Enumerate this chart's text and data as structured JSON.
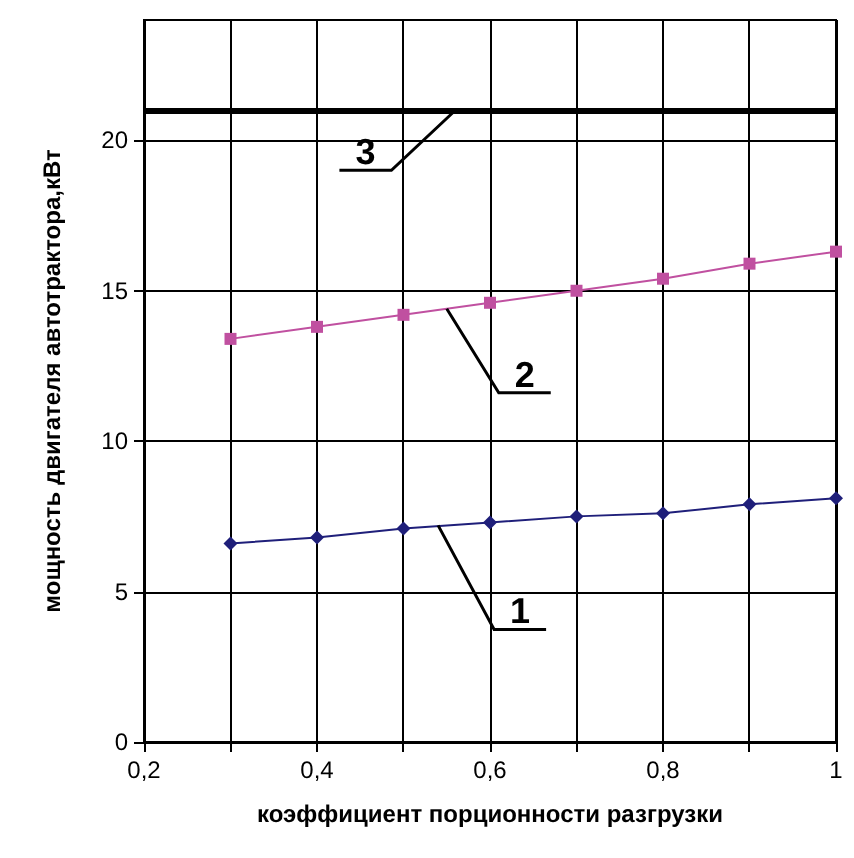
{
  "chart_data": {
    "type": "line",
    "xlabel": "коэффициент порционности разгрузки",
    "ylabel": "мощность двигателя автотрактора,кВт",
    "x": [
      0.3,
      0.4,
      0.5,
      0.6,
      0.7,
      0.8,
      0.9,
      1
    ],
    "series": [
      {
        "color": "#1f1f7a",
        "marker": "diamond",
        "values": [
          6.6,
          6.8,
          7.1,
          7.3,
          7.5,
          7.6,
          7.9,
          8.1
        ]
      },
      {
        "color": "#c050a0",
        "marker": "square",
        "values": [
          13.4,
          13.8,
          14.2,
          14.6,
          15.0,
          15.4,
          15.9,
          16.3
        ]
      }
    ],
    "ref_lines": [
      {
        "axis": "y",
        "value": 21,
        "color": "#000000"
      }
    ],
    "annotations": [
      {
        "text": "1",
        "x": 0.54,
        "y": 7.2
      },
      {
        "text": "2",
        "x": 0.55,
        "y": 14.4
      },
      {
        "text": "3",
        "x": 0.56,
        "y": 21
      }
    ],
    "xlim": [
      0.2,
      1
    ],
    "xticks": [
      {
        "value": 0.2,
        "label": "0,2"
      },
      {
        "value": 0.3,
        "label": null
      },
      {
        "value": 0.4,
        "label": "0,4"
      },
      {
        "value": 0.5,
        "label": null
      },
      {
        "value": 0.6,
        "label": "0,6"
      },
      {
        "value": 0.7,
        "label": null
      },
      {
        "value": 0.8,
        "label": "0,8"
      },
      {
        "value": 0.9,
        "label": null
      },
      {
        "value": 1,
        "label": "1"
      }
    ],
    "ylim": [
      0,
      24
    ],
    "yticks": [
      0,
      5,
      10,
      15,
      20
    ],
    "grid": true,
    "line_style": "solid"
  }
}
